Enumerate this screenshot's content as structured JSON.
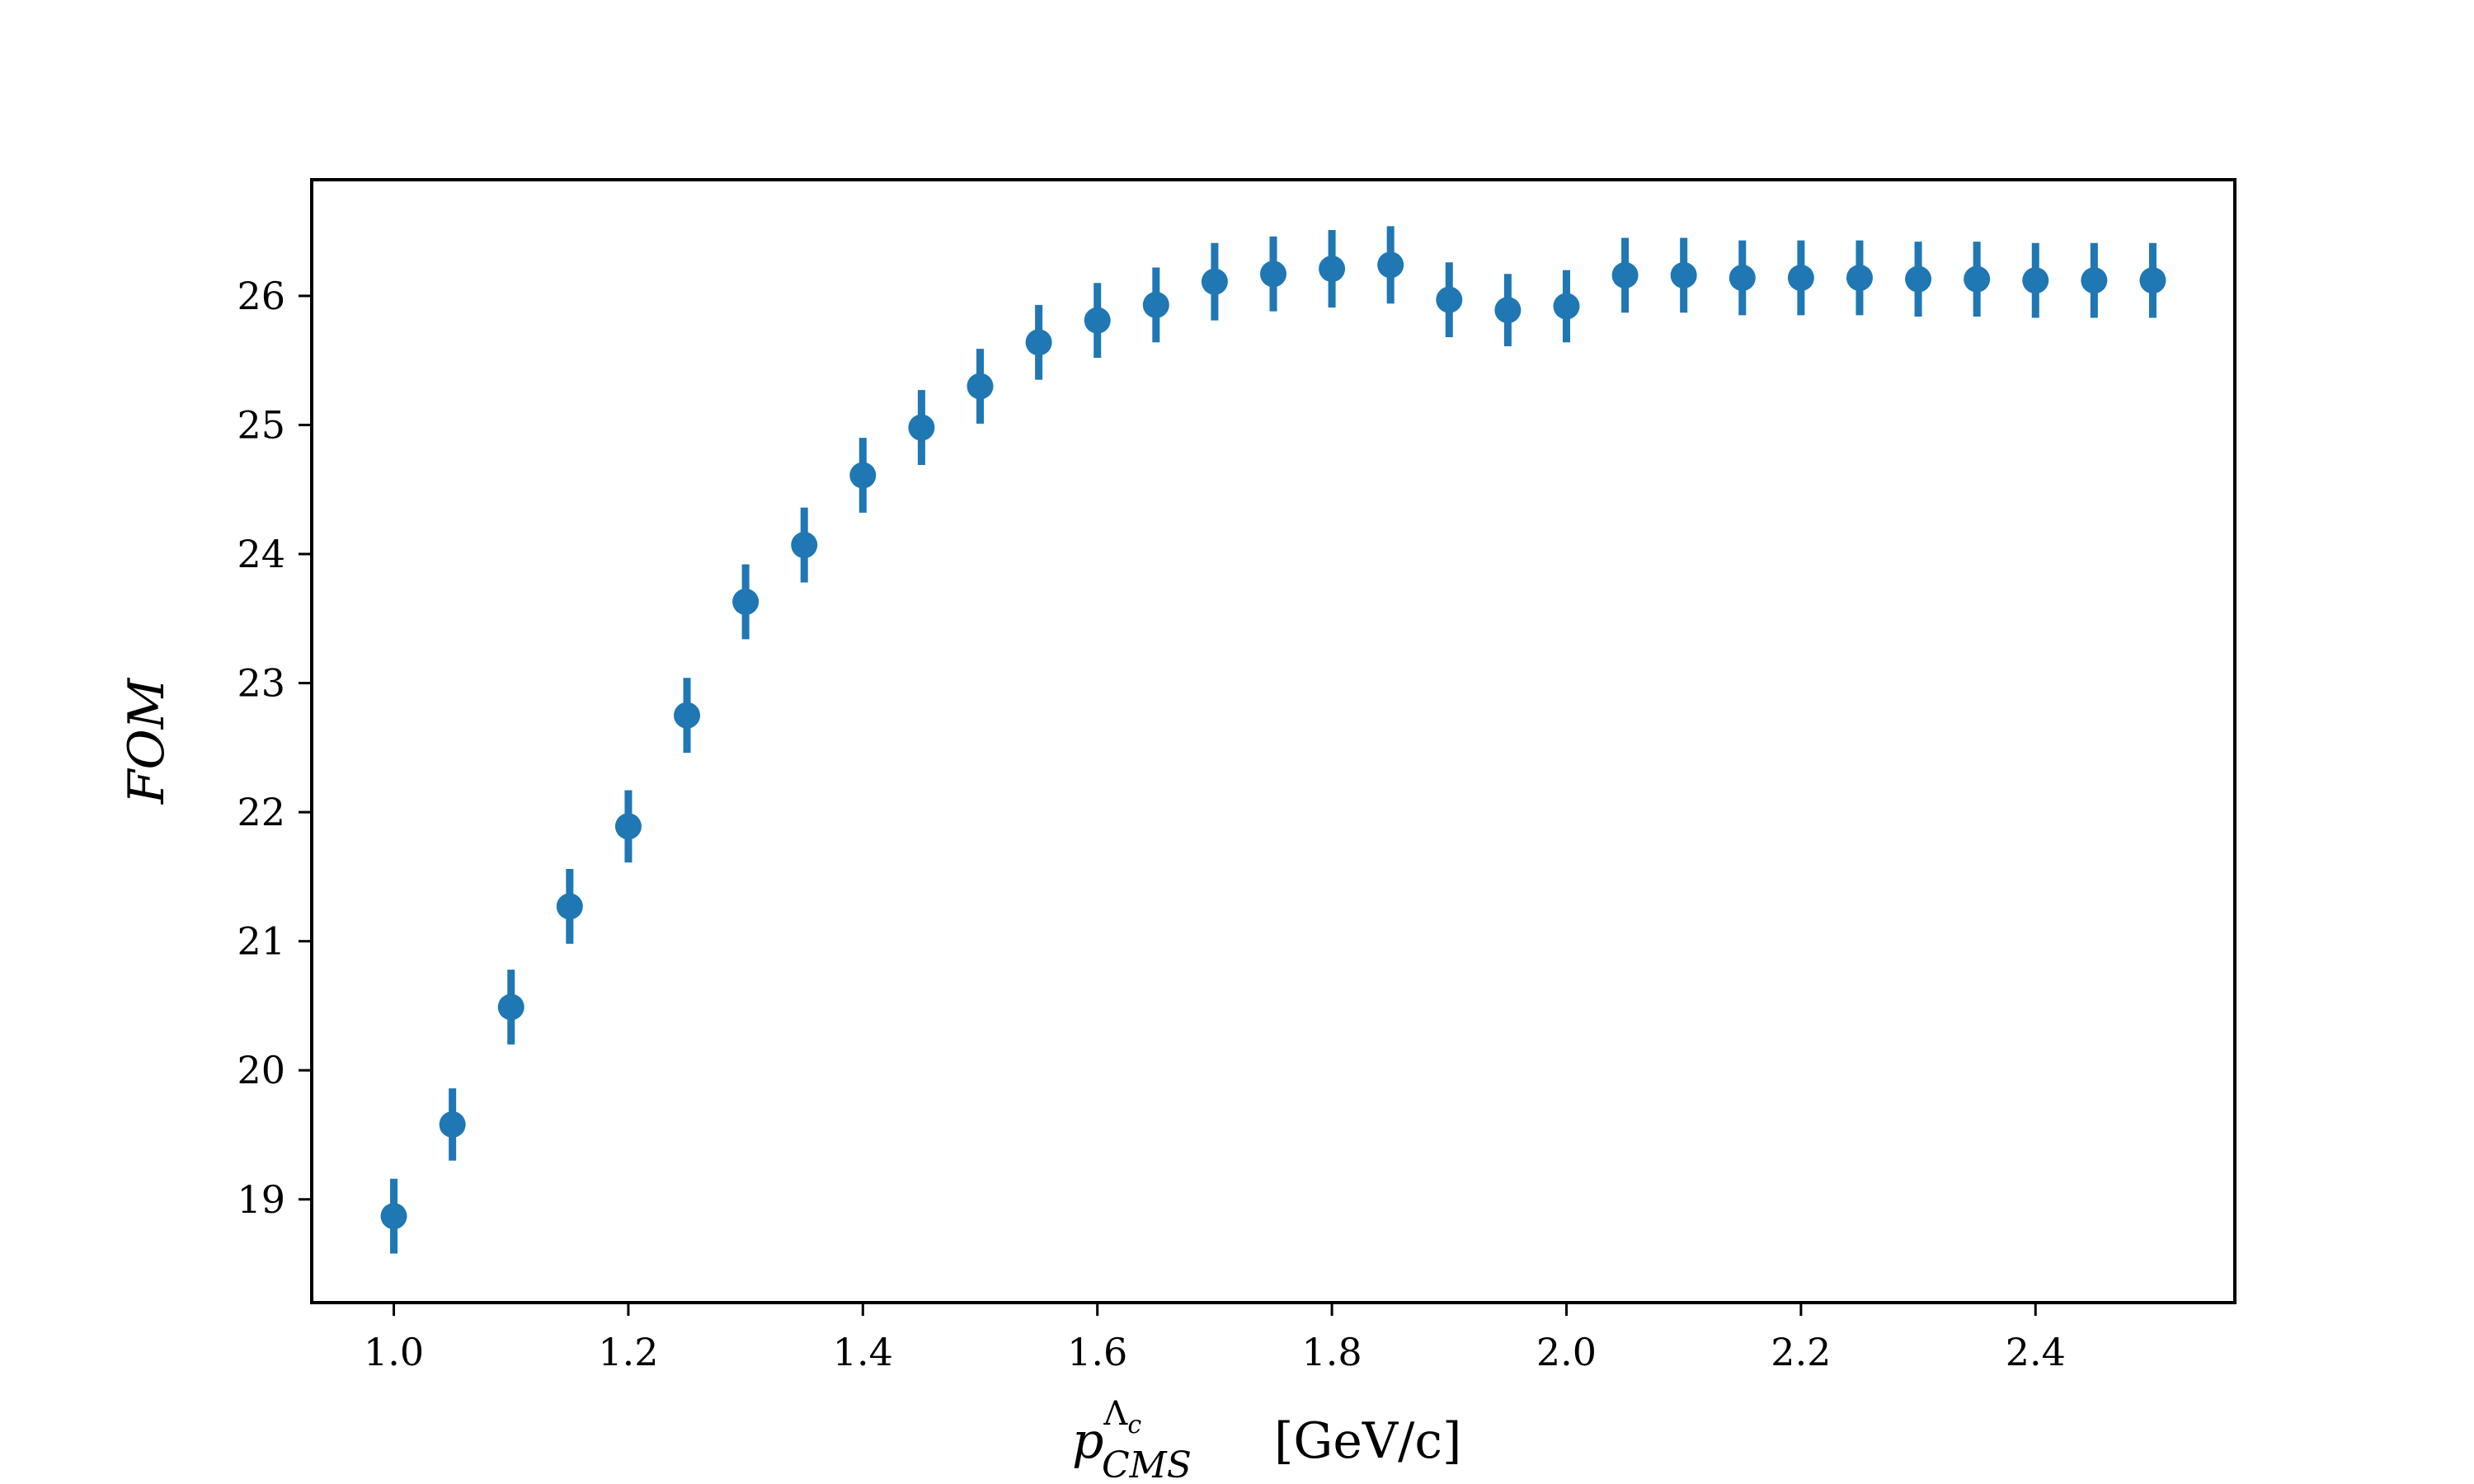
{
  "chart_data": {
    "type": "scatter",
    "ylabel": "FOM",
    "xlabel": {
      "symbol": "p",
      "superscript_base": "Λ",
      "superscript_sub": "c",
      "subscript": "CMS",
      "units": "[GeV/c]"
    },
    "xlim": [
      0.93,
      2.57
    ],
    "ylim": [
      18.2,
      26.9
    ],
    "x_ticks": [
      "1.0",
      "1.2",
      "1.4",
      "1.6",
      "1.8",
      "2.0",
      "2.2",
      "2.4"
    ],
    "y_ticks": [
      "19",
      "20",
      "21",
      "22",
      "23",
      "24",
      "25",
      "26"
    ],
    "grid": false,
    "marker_color": "#1f77b4",
    "series": [
      {
        "x": [
          1.0,
          1.05,
          1.1,
          1.15,
          1.2,
          1.25,
          1.3,
          1.35,
          1.4,
          1.45,
          1.5,
          1.55,
          1.6,
          1.65,
          1.7,
          1.75,
          1.8,
          1.85,
          1.9,
          1.95,
          2.0,
          2.05,
          2.1,
          2.15,
          2.2,
          2.25,
          2.3,
          2.35,
          2.4,
          2.45,
          2.5
        ],
        "y": [
          18.87,
          19.58,
          20.49,
          21.27,
          21.89,
          22.75,
          23.63,
          24.07,
          24.61,
          24.98,
          25.3,
          25.64,
          25.81,
          25.93,
          26.11,
          26.17,
          26.21,
          26.24,
          25.97,
          25.89,
          25.92,
          26.16,
          26.16,
          26.14,
          26.14,
          26.14,
          26.13,
          26.13,
          26.12,
          26.12,
          26.12
        ],
        "yerr": [
          0.29,
          0.28,
          0.29,
          0.29,
          0.28,
          0.29,
          0.29,
          0.29,
          0.29,
          0.29,
          0.29,
          0.29,
          0.29,
          0.29,
          0.3,
          0.29,
          0.3,
          0.3,
          0.29,
          0.28,
          0.28,
          0.29,
          0.29,
          0.29,
          0.29,
          0.29,
          0.29,
          0.29,
          0.29,
          0.29,
          0.29
        ]
      }
    ]
  }
}
